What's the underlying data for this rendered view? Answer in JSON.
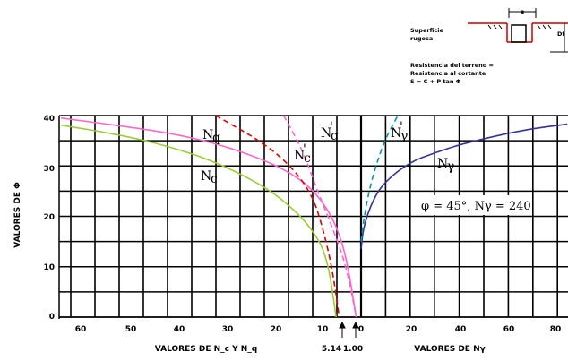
{
  "chart_data": {
    "type": "line",
    "y_axis_label": "VALORES DE Φ",
    "y_ticks": [
      "40",
      "30",
      "20",
      "10",
      "0"
    ],
    "ylim": [
      0,
      40
    ],
    "left_panel": {
      "xlabel": "VALORES DE N_c Y N_q",
      "x_ticks": [
        "60",
        "50",
        "40",
        "30",
        "20",
        "10",
        "0"
      ],
      "xlim": [
        62,
        0
      ],
      "markers": [
        "5.14",
        "1.00"
      ],
      "series": [
        {
          "name": "Nc",
          "color": "#99cc33",
          "dash": false,
          "points": [
            [
              62,
              38.1
            ],
            [
              50,
              36.2
            ],
            [
              40,
              34.0
            ],
            [
              30,
              30.8
            ],
            [
              20,
              26.0
            ],
            [
              14,
              21.5
            ],
            [
              10,
              17.3
            ],
            [
              7,
              12.0
            ],
            [
              5.14,
              0
            ]
          ]
        },
        {
          "name": "Nq",
          "color": "#ff66cc",
          "dash": false,
          "points": [
            [
              62,
              39.5
            ],
            [
              50,
              38.0
            ],
            [
              40,
              36.6
            ],
            [
              30,
              34.5
            ],
            [
              20,
              31.2
            ],
            [
              14,
              28.3
            ],
            [
              10,
              25.3
            ],
            [
              7,
              21.5
            ],
            [
              5,
              17.8
            ],
            [
              3,
              11.8
            ],
            [
              1,
              0
            ]
          ]
        },
        {
          "name": "Nq",
          "color": "#dd0000",
          "dash": true,
          "points": [
            [
              30,
              40
            ],
            [
              20,
              34.5
            ],
            [
              14,
              29.5
            ],
            [
              10,
              24.0
            ],
            [
              8,
              18.0
            ],
            [
              6,
              10.0
            ],
            [
              4.5,
              0
            ]
          ]
        },
        {
          "name": "Nc",
          "color": "#ff66cc",
          "dash": true,
          "points": [
            [
              16,
              40
            ],
            [
              12,
              33.0
            ],
            [
              9,
              25.0
            ],
            [
              6,
              18.0
            ],
            [
              3,
              10.0
            ],
            [
              1,
              0
            ]
          ]
        }
      ]
    },
    "right_panel": {
      "xlabel": "VALORES DE Nγ",
      "x_ticks": [
        "0",
        "20",
        "40",
        "60",
        "80"
      ],
      "xlim": [
        0,
        84
      ],
      "series": [
        {
          "name": "Nγ",
          "color": "#333399",
          "dash": false,
          "points": [
            [
              0,
              13.5
            ],
            [
              1,
              18
            ],
            [
              5,
              23.5
            ],
            [
              10,
              27
            ],
            [
              20,
              30.8
            ],
            [
              30,
              32.6
            ],
            [
              40,
              34.2
            ],
            [
              50,
              35.4
            ],
            [
              60,
              36.5
            ],
            [
              70,
              37.4
            ],
            [
              84,
              38.3
            ]
          ]
        },
        {
          "name": "Nγ",
          "color": "#009999",
          "dash": true,
          "points": [
            [
              0,
              15
            ],
            [
              1,
              19
            ],
            [
              3,
              24.5
            ],
            [
              6,
              30
            ],
            [
              10,
              35.5
            ],
            [
              15,
              40
            ]
          ]
        }
      ]
    },
    "curve_labels": [
      "N",
      "N",
      "N",
      "N",
      "N",
      "N"
    ],
    "curve_label_subscripts": [
      "q",
      "c",
      "q",
      "c",
      "γ",
      "γ"
    ],
    "annotation": "φ = 45°, Nγ = 240",
    "legend_text": [
      "Superficie",
      "rugosa",
      "Resistencia del terreno =",
      "Resistencia al cortante",
      "S = C + P tan Φ"
    ],
    "legend_B": "B",
    "legend_D": "Df"
  }
}
